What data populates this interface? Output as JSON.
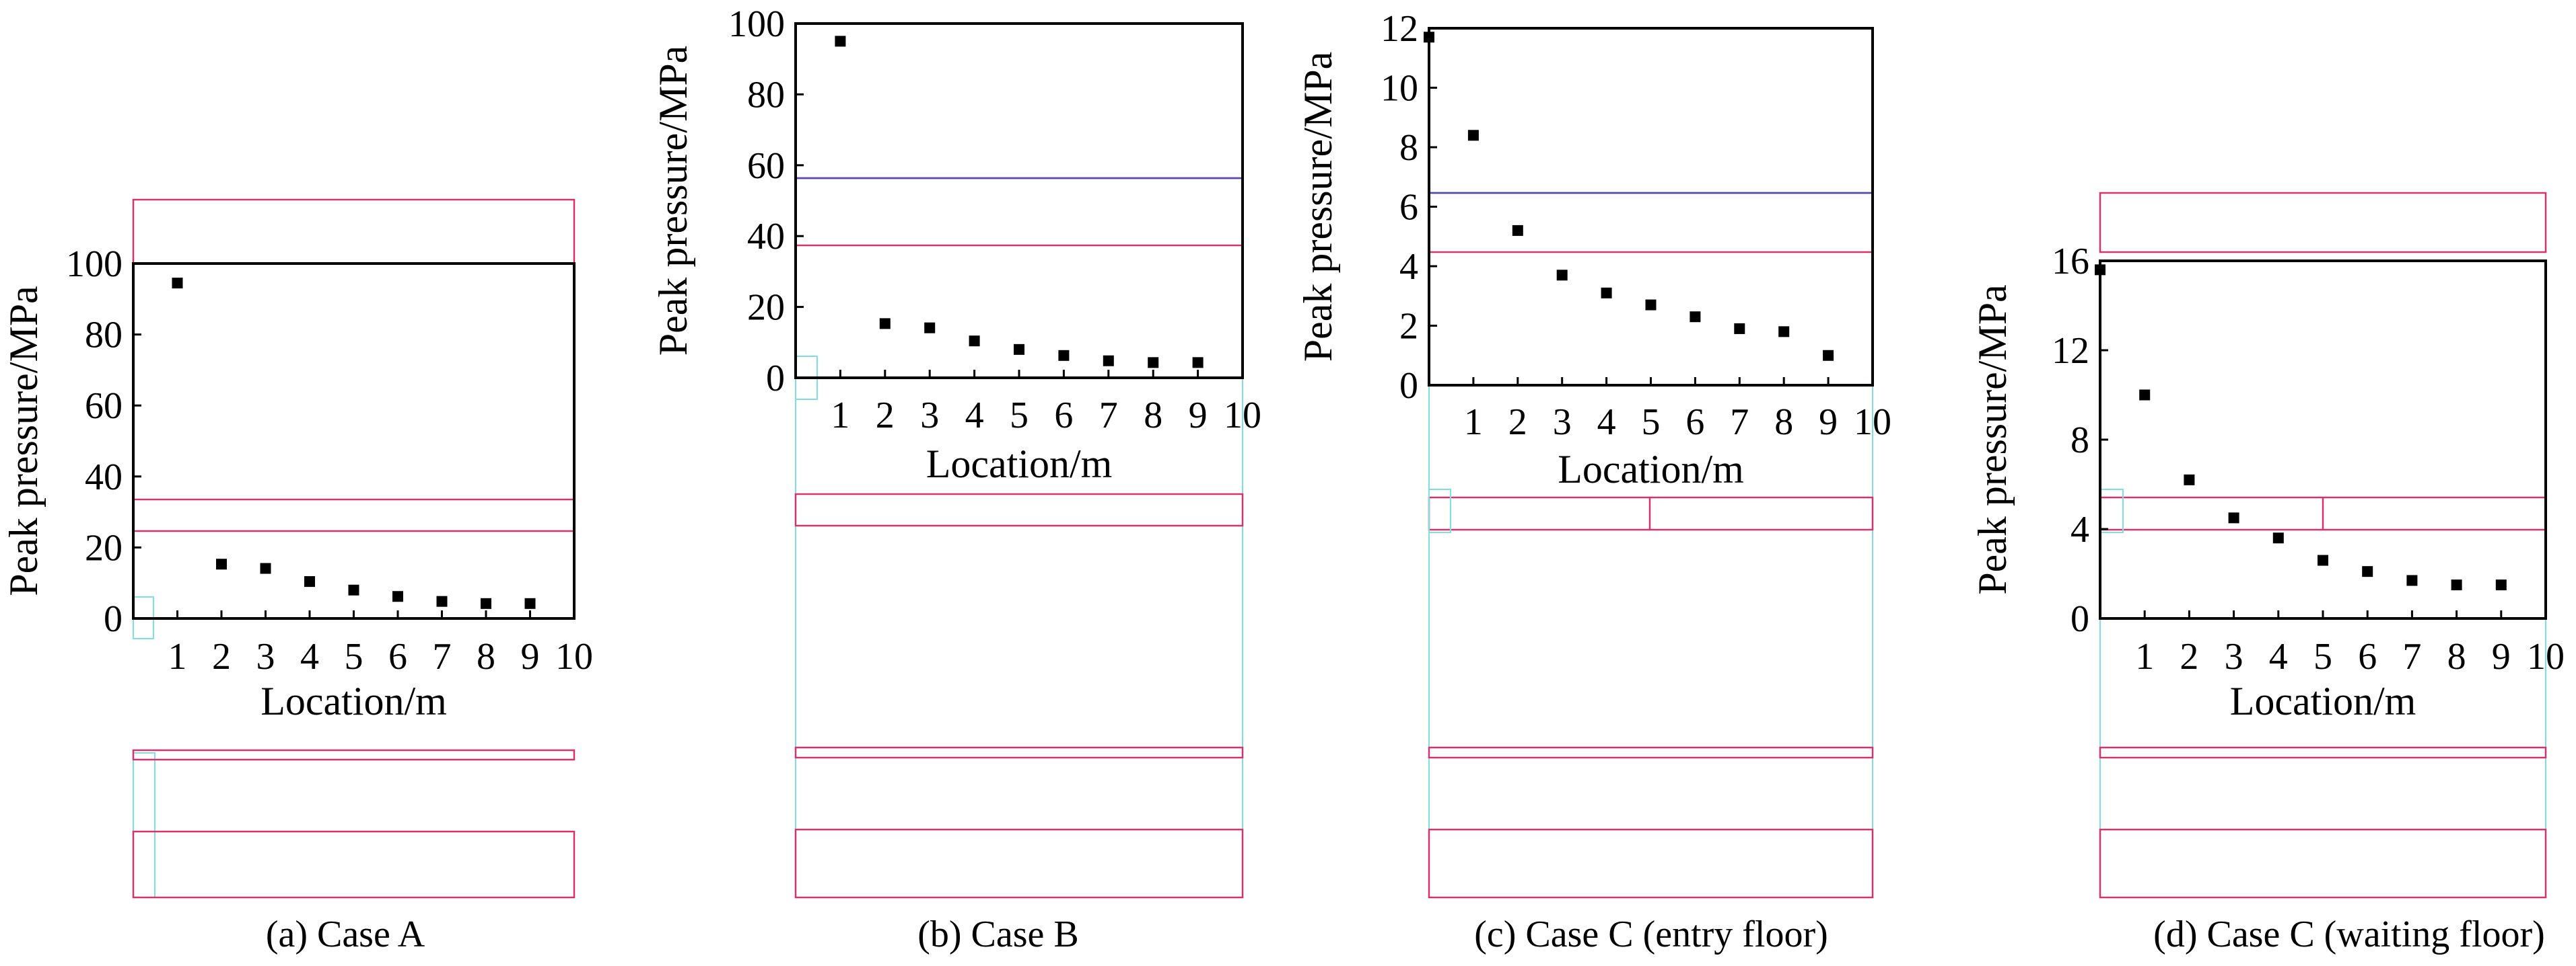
{
  "figure": {
    "panels": 4
  },
  "chart_data": [
    {
      "type": "scatter",
      "caption": "(a) Case A",
      "xlabel": "Location/m",
      "ylabel": "Peak pressure/MPa",
      "xlim": [
        0,
        10
      ],
      "ylim": [
        0,
        100
      ],
      "xticks": [
        1,
        2,
        3,
        4,
        5,
        6,
        7,
        8,
        9,
        10
      ],
      "yticks": [
        0,
        20,
        40,
        60,
        80,
        100
      ],
      "x": [
        1,
        2,
        3,
        4,
        5,
        6,
        7,
        8,
        9
      ],
      "y": [
        94.5,
        15.3,
        14.1,
        10.4,
        8.0,
        6.2,
        4.8,
        4.2,
        4.2
      ],
      "marker": "square",
      "color": "#000000",
      "overlay_lines_color": "#d6336c",
      "overlay_box_color": "#7ee0e0"
    },
    {
      "type": "scatter",
      "caption": "(b) Case B",
      "xlabel": "Location/m",
      "ylabel": "Peak pressure/MPa",
      "xlim": [
        0,
        10
      ],
      "ylim": [
        0,
        100
      ],
      "xticks": [
        1,
        2,
        3,
        4,
        5,
        6,
        7,
        8,
        9,
        10
      ],
      "yticks": [
        0,
        20,
        40,
        60,
        80,
        100
      ],
      "x": [
        1,
        2,
        3,
        4,
        5,
        6,
        7,
        8,
        9
      ],
      "y": [
        95.0,
        15.3,
        14.1,
        10.4,
        8.0,
        6.3,
        4.8,
        4.3,
        4.3
      ],
      "marker": "square",
      "color": "#000000",
      "overlay_lines_color": "#d6336c",
      "overlay_blue_color": "#4a4ab0",
      "overlay_box_color": "#7ee0e0"
    },
    {
      "type": "scatter",
      "caption": "(c) Case C (entry floor)",
      "xlabel": "Location/m",
      "ylabel": "Peak pressure/MPa",
      "xlim": [
        0,
        10
      ],
      "ylim": [
        0,
        12
      ],
      "xticks": [
        1,
        2,
        3,
        4,
        5,
        6,
        7,
        8,
        9,
        10
      ],
      "yticks": [
        0,
        2,
        4,
        6,
        8,
        10,
        12
      ],
      "x": [
        0,
        1,
        2,
        3,
        4,
        5,
        6,
        7,
        8,
        9
      ],
      "y": [
        11.7,
        8.4,
        5.2,
        3.7,
        3.1,
        2.7,
        2.3,
        1.9,
        1.8,
        1.0
      ],
      "marker": "square",
      "color": "#000000",
      "overlay_lines_color": "#d6336c",
      "overlay_blue_color": "#4a4ab0",
      "overlay_box_color": "#7ee0e0"
    },
    {
      "type": "scatter",
      "caption": "(d) Case C (waiting floor)",
      "xlabel": "Location/m",
      "ylabel": "Peak pressure/MPa",
      "xlim": [
        0,
        10
      ],
      "ylim": [
        0,
        16
      ],
      "xticks": [
        1,
        2,
        3,
        4,
        5,
        6,
        7,
        8,
        9,
        10
      ],
      "yticks": [
        0,
        4,
        8,
        12,
        16
      ],
      "x": [
        0,
        1,
        2,
        3,
        4,
        5,
        6,
        7,
        8,
        9
      ],
      "y": [
        15.6,
        10.0,
        6.2,
        4.5,
        3.6,
        2.6,
        2.1,
        1.7,
        1.5,
        1.5
      ],
      "marker": "square",
      "color": "#000000",
      "overlay_lines_color": "#d6336c",
      "overlay_box_color": "#7ee0e0"
    }
  ]
}
